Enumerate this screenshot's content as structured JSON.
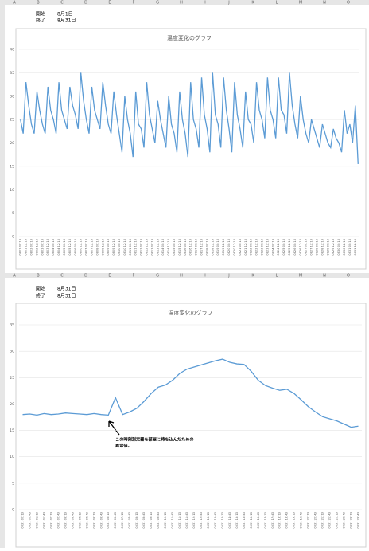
{
  "column_headers": [
    "A",
    "B",
    "C",
    "D",
    "E",
    "F",
    "G",
    "H",
    "I",
    "J",
    "K",
    "L",
    "M",
    "N",
    "O"
  ],
  "sheet1": {
    "start_label": "開始",
    "start_value": "8月1日",
    "end_label": "終了",
    "end_value": "8月31日"
  },
  "sheet2": {
    "start_label": "開始",
    "start_value": "8月31日",
    "end_label": "終了",
    "end_value": "8月31日"
  },
  "chart_data": [
    {
      "type": "line",
      "title": "温度変化のグラフ",
      "color": "#5b9bd5",
      "ylim": [
        0,
        40
      ],
      "yticks": [
        0,
        5,
        10,
        15,
        20,
        25,
        30,
        35,
        40
      ],
      "grid": true,
      "categories": [
        "0801 00:13",
        null,
        "0801 12:13",
        null,
        "0802 00:13",
        null,
        "0802 12:13",
        null,
        "0803 00:13",
        null,
        "0803 12:13",
        null,
        "0804 00:13",
        null,
        "0804 12:13",
        null,
        "0805 00:13",
        null,
        "0805 12:13",
        null,
        "0806 00:13",
        null,
        "0806 12:13",
        null,
        "0807 00:13",
        null,
        "0807 12:13",
        null,
        "0808 00:13",
        null,
        "0808 12:13",
        null,
        "0809 00:13",
        null,
        "0809 12:13",
        null,
        "0810 00:13",
        null,
        "0810 12:13",
        null,
        "0811 00:13",
        null,
        "0811 12:13",
        null,
        "0812 00:13",
        null,
        "0812 12:13",
        null,
        "0813 00:13",
        null,
        "0813 12:13",
        null,
        "0814 00:13",
        null,
        "0814 12:13",
        null,
        "0815 00:13",
        null,
        "0815 12:13",
        null,
        "0816 00:13",
        null,
        "0816 12:13",
        null,
        "0817 00:13",
        null,
        "0817 12:13",
        null,
        "0818 00:13",
        null,
        "0818 12:13",
        null,
        "0819 00:13",
        null,
        "0819 12:13",
        null,
        "0820 00:13",
        null,
        "0820 12:13",
        null,
        "0821 00:13",
        null,
        "0821 12:13",
        null,
        "0822 00:13",
        null,
        "0822 12:13",
        null,
        "0823 00:13",
        null,
        "0823 12:13",
        null,
        "0824 00:13",
        null,
        "0824 12:13",
        null,
        "0825 00:13",
        null,
        "0825 12:13",
        null,
        "0826 00:13",
        null,
        "0826 12:13",
        null,
        "0827 00:13",
        null,
        "0827 12:13",
        null,
        "0828 00:13",
        null,
        "0828 12:13",
        null,
        "0829 00:13",
        null,
        "0829 12:13",
        null,
        "0830 00:13",
        null,
        "0830 12:13",
        null,
        "0831 00:13",
        null,
        "0831 12:13",
        null
      ],
      "values": [
        25,
        22,
        33,
        28,
        24,
        22,
        31,
        27,
        24,
        22,
        32,
        27,
        25,
        22,
        33,
        27,
        25,
        23,
        32,
        28,
        26,
        23,
        35,
        29,
        25,
        22,
        32,
        27,
        25,
        23,
        33,
        28,
        24,
        22,
        31,
        26,
        22,
        18,
        30,
        25,
        22,
        17,
        31,
        24,
        23,
        19,
        33,
        26,
        23,
        20,
        29,
        25,
        22,
        19,
        30,
        24,
        22,
        18,
        31,
        25,
        22,
        17,
        33,
        25,
        23,
        19,
        34,
        26,
        23,
        18,
        35,
        26,
        24,
        19,
        34,
        27,
        23,
        18,
        33,
        26,
        23,
        19,
        31,
        25,
        24,
        20,
        33,
        27,
        25,
        21,
        34,
        27,
        25,
        21,
        34,
        27,
        26,
        22,
        35,
        28,
        24,
        21,
        30,
        25,
        22,
        20,
        25,
        23,
        21,
        19,
        24,
        22,
        20,
        19,
        23,
        21,
        20,
        18,
        27,
        22,
        24,
        20,
        28,
        15.5
      ]
    },
    {
      "type": "line",
      "title": "温度変化のグラフ",
      "color": "#5b9bd5",
      "ylim": [
        0,
        35
      ],
      "yticks": [
        0,
        5,
        10,
        15,
        20,
        25,
        30,
        35
      ],
      "grid": true,
      "annotation": [
        "この時刻測定器を部屋に持ち込んだための",
        "異常値。"
      ],
      "categories": [
        "0831 00:13",
        "0831 00:43",
        "0831 01:13",
        "0831 01:43",
        "0831 02:13",
        "0831 02:43",
        "0831 03:13",
        "0831 03:43",
        "0831 04:13",
        "0831 04:43",
        "0831 05:13",
        "0831 05:43",
        "0831 06:13",
        "0831 06:43",
        "0831 07:13",
        "0831 07:43",
        "0831 08:13",
        "0831 08:43",
        "0831 09:13",
        "0831 09:43",
        "0831 10:13",
        "0831 10:43",
        "0831 11:13",
        "0831 11:43",
        "0831 12:13",
        "0831 12:43",
        "0831 13:13",
        "0831 13:43",
        "0831 14:13",
        "0831 14:43",
        "0831 15:13",
        "0831 15:43",
        "0831 16:13",
        "0831 16:43",
        "0831 17:13",
        "0831 17:43",
        "0831 18:13",
        "0831 18:43",
        "0831 19:13",
        "0831 19:43",
        "0831 20:13",
        "0831 20:43",
        "0831 21:13",
        "0831 21:43",
        "0831 22:13",
        "0831 22:43",
        "0831 23:13",
        "0831 23:43"
      ],
      "values": [
        18,
        18.1,
        17.9,
        18.2,
        18,
        18.1,
        18.3,
        18.2,
        18.1,
        18,
        18.2,
        18,
        17.9,
        21.2,
        18,
        18.5,
        19.2,
        20.5,
        22,
        23.2,
        23.6,
        24.5,
        25.8,
        26.6,
        27,
        27.4,
        27.8,
        28.2,
        28.5,
        27.9,
        27.6,
        27.5,
        26.2,
        24.5,
        23.5,
        23,
        22.6,
        22.8,
        22,
        20.8,
        19.5,
        18.5,
        17.6,
        17.2,
        16.8,
        16.2,
        15.6,
        15.8
      ]
    }
  ]
}
